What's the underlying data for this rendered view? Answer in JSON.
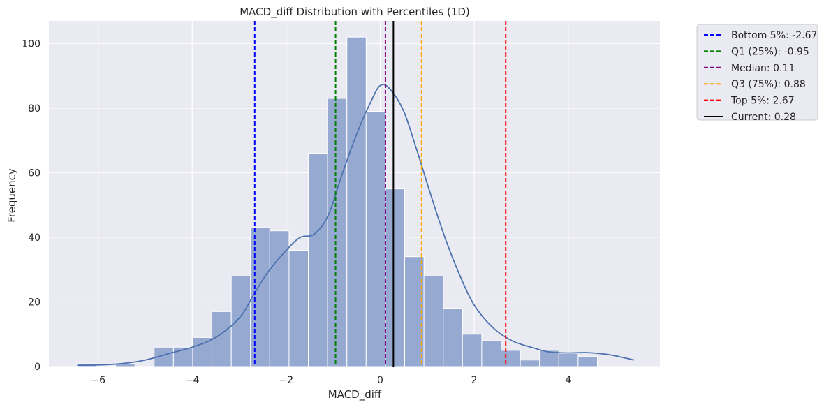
{
  "chart_data": {
    "type": "bar",
    "title": "MACD_diff Distribution with Percentiles (1D)",
    "xlabel": "MACD_diff",
    "ylabel": "Frequency",
    "xlim": [
      -7.05,
      5.95
    ],
    "ylim": [
      0,
      107
    ],
    "xticks": [
      -6,
      -4,
      -2,
      0,
      2,
      4
    ],
    "xtick_labels": [
      "−6",
      "−4",
      "−2",
      "0",
      "2",
      "4"
    ],
    "yticks": [
      0,
      20,
      40,
      60,
      80,
      100
    ],
    "ytick_labels": [
      "0",
      "20",
      "40",
      "60",
      "80",
      "100"
    ],
    "grid": true,
    "legend_position": "outside top-right",
    "bins": {
      "edges": [
        -6.45,
        -6.04,
        -5.63,
        -5.22,
        -4.81,
        -4.4,
        -3.99,
        -3.58,
        -3.17,
        -2.76,
        -2.35,
        -1.94,
        -1.53,
        -1.12,
        -0.71,
        -0.3,
        0.11,
        0.52,
        0.93,
        1.34,
        1.75,
        2.16,
        2.57,
        2.98,
        3.39,
        3.8,
        4.21,
        4.62,
        5.03,
        5.44
      ],
      "counts": [
        1,
        0,
        1,
        0,
        6,
        6,
        9,
        17,
        28,
        43,
        42,
        36,
        66,
        83,
        102,
        79,
        55,
        34,
        28,
        18,
        10,
        8,
        5,
        2,
        5,
        4,
        3,
        0,
        0
      ],
      "color": "#96a9d0"
    },
    "kde": {
      "color": "#4c72b0",
      "x": [
        -6.45,
        -6.0,
        -5.5,
        -5.0,
        -4.5,
        -4.0,
        -3.5,
        -3.0,
        -2.7,
        -2.4,
        -2.0,
        -1.7,
        -1.4,
        -1.1,
        -0.8,
        -0.5,
        -0.2,
        0.0,
        0.2,
        0.5,
        0.8,
        1.1,
        1.4,
        1.7,
        2.0,
        2.4,
        2.8,
        3.2,
        3.6,
        4.0,
        4.4,
        4.8,
        5.1,
        5.4
      ],
      "y": [
        0.4,
        0.5,
        0.9,
        2,
        4,
        6,
        9,
        15,
        22,
        29,
        36,
        40,
        41,
        47,
        60,
        72,
        82,
        87,
        86,
        79,
        66,
        52,
        39,
        28,
        19,
        12,
        8,
        6,
        4.5,
        4.2,
        4.3,
        3.8,
        3,
        2
      ]
    },
    "vlines": [
      {
        "label": "Bottom 5%: -2.67",
        "x": -2.67,
        "color": "#0000ff",
        "style": "dashed"
      },
      {
        "label": "Q1 (25%): -0.95",
        "x": -0.95,
        "color": "#008000",
        "style": "dashed"
      },
      {
        "label": "Median: 0.11",
        "x": 0.11,
        "color": "#800080",
        "style": "dashed"
      },
      {
        "label": "Q3 (75%): 0.88",
        "x": 0.88,
        "color": "#ffa500",
        "style": "dashed"
      },
      {
        "label": "Top 5%: 2.67",
        "x": 2.67,
        "color": "#ff0000",
        "style": "dashed"
      },
      {
        "label": "Current: 0.28",
        "x": 0.28,
        "color": "#000000",
        "style": "solid"
      }
    ],
    "colors": {
      "plot_background": "#eaeaf2",
      "grid": "#ffffff",
      "text": "#262626"
    }
  }
}
